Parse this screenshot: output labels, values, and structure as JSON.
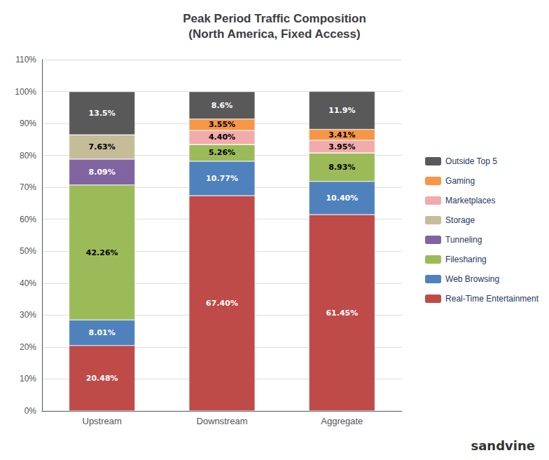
{
  "chart_data": {
    "type": "bar",
    "stacked": true,
    "title": "Peak Period Traffic Composition\n(North America, Fixed Access)",
    "categories": [
      "Upstream",
      "Downstream",
      "Aggregate"
    ],
    "series": [
      {
        "name": "Real-Time Entertainment",
        "color": "#BE4B48",
        "values": [
          20.48,
          67.4,
          61.45
        ],
        "value_labels": [
          "20.48%",
          "67.40%",
          "61.45%"
        ]
      },
      {
        "name": "Web Browsing",
        "color": "#4F81BD",
        "values": [
          8.01,
          10.77,
          10.4
        ],
        "value_labels": [
          "8.01%",
          "10.77%",
          "10.40%"
        ]
      },
      {
        "name": "Filesharing",
        "color": "#9BBB59",
        "values": [
          42.26,
          5.26,
          8.93
        ],
        "value_labels": [
          "42.26%",
          "5.26%",
          "8.93%"
        ]
      },
      {
        "name": "Tunneling",
        "color": "#8064A2",
        "values": [
          8.09,
          0.0,
          0.0
        ],
        "value_labels": [
          "8.09%",
          null,
          null
        ]
      },
      {
        "name": "Storage",
        "color": "#C4BD97",
        "values": [
          7.63,
          0.0,
          0.0
        ],
        "value_labels": [
          "7.63%",
          null,
          null
        ]
      },
      {
        "name": "Marketplaces",
        "color": "#F2ABAB",
        "values": [
          0.0,
          4.4,
          3.95
        ],
        "value_labels": [
          null,
          "4.40%",
          "3.95%"
        ]
      },
      {
        "name": "Gaming",
        "color": "#F79646",
        "values": [
          0.0,
          3.55,
          3.41
        ],
        "value_labels": [
          null,
          "3.55%",
          "3.41%"
        ]
      },
      {
        "name": "Outside Top 5",
        "color": "#595959",
        "values": [
          13.5,
          8.6,
          11.9
        ],
        "value_labels": [
          "13.5%",
          "8.6%",
          "11.9%"
        ]
      }
    ],
    "data_labels": true,
    "ylim": [
      0,
      110
    ],
    "yticks": [
      {
        "value": 0,
        "label": "0%"
      },
      {
        "value": 10,
        "label": "10%"
      },
      {
        "value": 20,
        "label": "20%"
      },
      {
        "value": 30,
        "label": "30%"
      },
      {
        "value": 40,
        "label": "40%"
      },
      {
        "value": 50,
        "label": "50%"
      },
      {
        "value": 60,
        "label": "60%"
      },
      {
        "value": 70,
        "label": "70%"
      },
      {
        "value": 80,
        "label": "80%"
      },
      {
        "value": 90,
        "label": "90%"
      },
      {
        "value": 100,
        "label": "100%"
      },
      {
        "value": 110,
        "label": "110%"
      }
    ],
    "grid": true,
    "legend": "right",
    "annotations": [
      "sandvine"
    ]
  }
}
